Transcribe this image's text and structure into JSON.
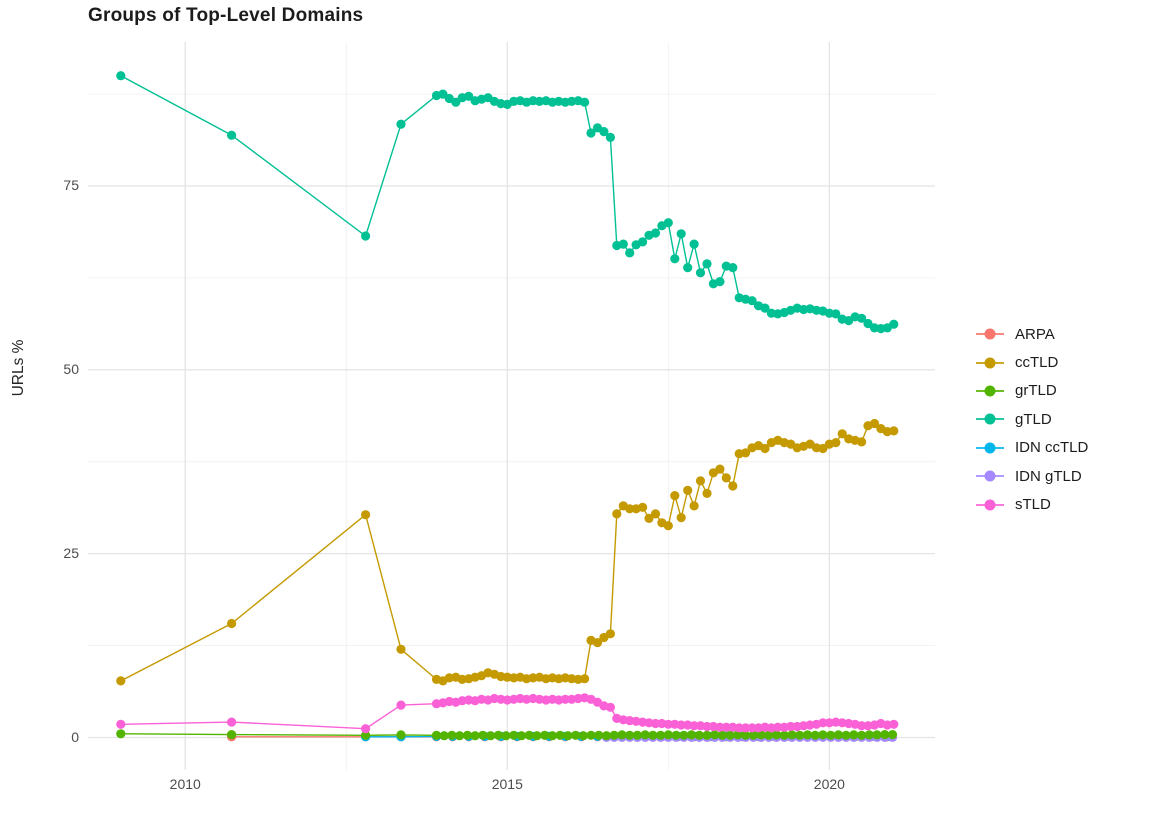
{
  "title": "Groups of Top-Level Domains",
  "axes": {
    "y_label": "URLs %",
    "y_ticks": [
      {
        "label": "0",
        "value": 0
      },
      {
        "label": "25",
        "value": 25
      },
      {
        "label": "50",
        "value": 50
      },
      {
        "label": "75",
        "value": 75
      }
    ],
    "x_ticks": [
      {
        "label": "2010",
        "value": 2010
      },
      {
        "label": "2015",
        "value": 2015
      },
      {
        "label": "2020",
        "value": 2020
      }
    ]
  },
  "legend": {
    "position": "right",
    "items": [
      {
        "label": "ARPA",
        "color": "#F8766D"
      },
      {
        "label": "ccTLD",
        "color": "#C49A00"
      },
      {
        "label": "grTLD",
        "color": "#53B400"
      },
      {
        "label": "gTLD",
        "color": "#00C094"
      },
      {
        "label": "IDN ccTLD",
        "color": "#00B6EB"
      },
      {
        "label": "IDN gTLD",
        "color": "#A58AFF"
      },
      {
        "label": "sTLD",
        "color": "#FB61D7"
      }
    ]
  },
  "chart_data": {
    "type": "line",
    "title": "Groups of Top-Level Domains",
    "xlabel": "",
    "ylabel": "URLs %",
    "x_range": [
      2008.49,
      2021.64
    ],
    "y_range": [
      -4.42,
      94.58
    ],
    "x_tick_values": [
      2010,
      2015,
      2020
    ],
    "y_tick_values": [
      0,
      25,
      50,
      75
    ],
    "x_minor_gridlines": [
      2012.5,
      2017.5
    ],
    "y_minor_gridlines": [
      12.5,
      37.5,
      62.5,
      87.5
    ],
    "grid": true,
    "background": "#FFFFFF",
    "grid_major_color": "#E4E4E4",
    "grid_minor_color": "#F1F1F1",
    "point_radius": 4.6,
    "line_width": 1.4,
    "legend_position": "right",
    "series": [
      {
        "name": "ARPA",
        "color": "#F8766D",
        "sparse": [
          [
            2010.72,
            0.1
          ],
          [
            2012.8,
            0.1
          ],
          [
            2013.35,
            0.1
          ]
        ],
        "dense": {
          "x0": 2013.9,
          "dx": 0.25,
          "values": [
            0.1,
            0.1,
            0.1,
            0.1,
            0.1,
            0.1,
            0.1,
            0.1,
            0.1,
            0.1,
            0.1,
            0.1,
            0.1,
            0.1,
            0.1,
            0.1,
            0.1,
            0.1,
            0.1,
            0.1,
            0.1,
            0.1,
            0.1,
            0.1,
            0.1,
            0.1,
            0.1,
            0.1,
            0.1
          ]
        }
      },
      {
        "name": "IDN ccTLD",
        "color": "#00B6EB",
        "sparse": [
          [
            2012.8,
            0.1
          ],
          [
            2013.35,
            0.1
          ]
        ],
        "dense": {
          "x0": 2013.9,
          "dx": 0.25,
          "values": [
            0.15,
            0.15,
            0.15,
            0.15,
            0.15,
            0.15,
            0.15,
            0.15,
            0.15,
            0.15,
            0.15,
            0.15,
            0.15,
            0.15,
            0.15,
            0.15,
            0.15,
            0.15,
            0.15,
            0.15,
            0.15,
            0.15,
            0.15,
            0.15,
            0.15,
            0.15,
            0.15,
            0.15,
            0.15
          ]
        }
      },
      {
        "name": "IDN gTLD",
        "color": "#A58AFF",
        "sparse": [],
        "dense": {
          "x0": 2016.54,
          "dx": 0.12,
          "values": [
            0.02,
            0.02,
            0.02,
            0.02,
            0.02,
            0.02,
            0.02,
            0.02,
            0.02,
            0.02,
            0.02,
            0.02,
            0.02,
            0.02,
            0.02,
            0.02,
            0.02,
            0.02,
            0.02,
            0.02,
            0.02,
            0.02,
            0.02,
            0.02,
            0.02,
            0.02,
            0.02,
            0.02,
            0.02,
            0.02,
            0.02,
            0.02,
            0.02,
            0.02,
            0.02,
            0.02,
            0.02,
            0.02
          ]
        }
      },
      {
        "name": "grTLD",
        "color": "#53B400",
        "sparse": [
          [
            2009.0,
            0.5
          ],
          [
            2010.72,
            0.4
          ],
          [
            2012.8,
            0.3
          ],
          [
            2013.35,
            0.35
          ]
        ],
        "dense": {
          "x0": 2013.9,
          "dx": 0.12,
          "values": [
            0.3,
            0.25,
            0.3,
            0.25,
            0.3,
            0.25,
            0.3,
            0.25,
            0.3,
            0.25,
            0.3,
            0.25,
            0.3,
            0.25,
            0.3,
            0.25,
            0.3,
            0.25,
            0.3,
            0.25,
            0.3,
            0.3,
            0.25,
            0.3,
            0.35,
            0.3,
            0.3,
            0.35,
            0.3,
            0.3,
            0.35,
            0.3,
            0.3,
            0.35,
            0.3,
            0.3,
            0.35,
            0.3,
            0.3,
            0.35,
            0.3,
            0.3,
            0.35,
            0.3,
            0.35,
            0.3,
            0.35,
            0.3,
            0.35,
            0.3,
            0.35,
            0.3,
            0.35,
            0.3,
            0.35,
            0.3,
            0.35,
            0.35,
            0.4,
            0.4
          ]
        }
      },
      {
        "name": "sTLD",
        "color": "#FB61D7",
        "sparse": [
          [
            2009.0,
            1.8
          ],
          [
            2010.72,
            2.1
          ],
          [
            2012.8,
            1.2
          ],
          [
            2013.35,
            4.4
          ]
        ],
        "dense": {
          "x0": 2013.9,
          "dx": 0.1,
          "values": [
            4.6,
            4.7,
            4.9,
            4.8,
            5.0,
            5.1,
            5.0,
            5.2,
            5.1,
            5.3,
            5.2,
            5.1,
            5.2,
            5.3,
            5.2,
            5.3,
            5.2,
            5.1,
            5.2,
            5.1,
            5.2,
            5.2,
            5.3,
            5.4,
            5.2,
            4.8,
            4.3,
            4.1,
            2.6,
            2.4,
            2.3,
            2.2,
            2.1,
            2.0,
            1.9,
            1.9,
            1.8,
            1.8,
            1.7,
            1.7,
            1.6,
            1.6,
            1.5,
            1.5,
            1.4,
            1.4,
            1.4,
            1.3,
            1.3,
            1.3,
            1.3,
            1.4,
            1.3,
            1.4,
            1.4,
            1.5,
            1.5,
            1.6,
            1.7,
            1.8,
            2.0,
            2.0,
            2.1,
            2.0,
            1.9,
            1.8,
            1.6,
            1.6,
            1.7,
            1.9,
            1.7,
            1.8
          ]
        }
      },
      {
        "name": "ccTLD",
        "color": "#C49A00",
        "sparse": [
          [
            2009.0,
            7.7
          ],
          [
            2010.72,
            15.5
          ],
          [
            2012.8,
            30.3
          ],
          [
            2013.35,
            12.0
          ]
        ],
        "dense": {
          "x0": 2013.9,
          "dx": 0.1,
          "values": [
            7.9,
            7.7,
            8.1,
            8.2,
            7.9,
            8.0,
            8.2,
            8.4,
            8.8,
            8.6,
            8.3,
            8.2,
            8.1,
            8.2,
            8.0,
            8.1,
            8.2,
            8.0,
            8.1,
            8.0,
            8.1,
            8.0,
            7.9,
            8.0,
            13.2,
            12.9,
            13.6,
            14.1,
            30.4,
            31.5,
            31.1,
            31.1,
            31.3,
            29.8,
            30.4,
            29.2,
            28.8,
            32.9,
            29.9,
            33.6,
            31.5,
            34.9,
            33.2,
            36.0,
            36.5,
            35.3,
            34.2,
            38.6,
            38.7,
            39.4,
            39.7,
            39.3,
            40.1,
            40.4,
            40.1,
            39.9,
            39.4,
            39.6,
            39.9,
            39.4,
            39.3,
            39.9,
            40.1,
            41.3,
            40.6,
            40.4,
            40.2,
            42.4,
            42.7,
            42.0,
            41.6,
            41.7
          ]
        }
      },
      {
        "name": "gTLD",
        "color": "#00C094",
        "sparse": [
          [
            2009.0,
            90.0
          ],
          [
            2010.72,
            81.9
          ],
          [
            2012.8,
            68.2
          ],
          [
            2013.35,
            83.4
          ]
        ],
        "dense": {
          "x0": 2013.9,
          "dx": 0.1,
          "values": [
            87.3,
            87.5,
            86.9,
            86.4,
            87.0,
            87.2,
            86.6,
            86.8,
            87.0,
            86.5,
            86.2,
            86.1,
            86.5,
            86.6,
            86.4,
            86.6,
            86.5,
            86.6,
            86.4,
            86.5,
            86.4,
            86.5,
            86.6,
            86.4,
            82.2,
            82.9,
            82.4,
            81.6,
            66.9,
            67.1,
            65.9,
            67.0,
            67.4,
            68.3,
            68.6,
            69.6,
            70.0,
            65.1,
            68.5,
            63.9,
            67.1,
            63.2,
            64.4,
            61.7,
            62.0,
            64.1,
            63.9,
            59.8,
            59.6,
            59.4,
            58.7,
            58.4,
            57.7,
            57.6,
            57.8,
            58.1,
            58.4,
            58.2,
            58.3,
            58.1,
            58.0,
            57.7,
            57.6,
            56.9,
            56.7,
            57.2,
            57.0,
            56.3,
            55.7,
            55.6,
            55.7,
            56.2
          ]
        }
      }
    ]
  }
}
